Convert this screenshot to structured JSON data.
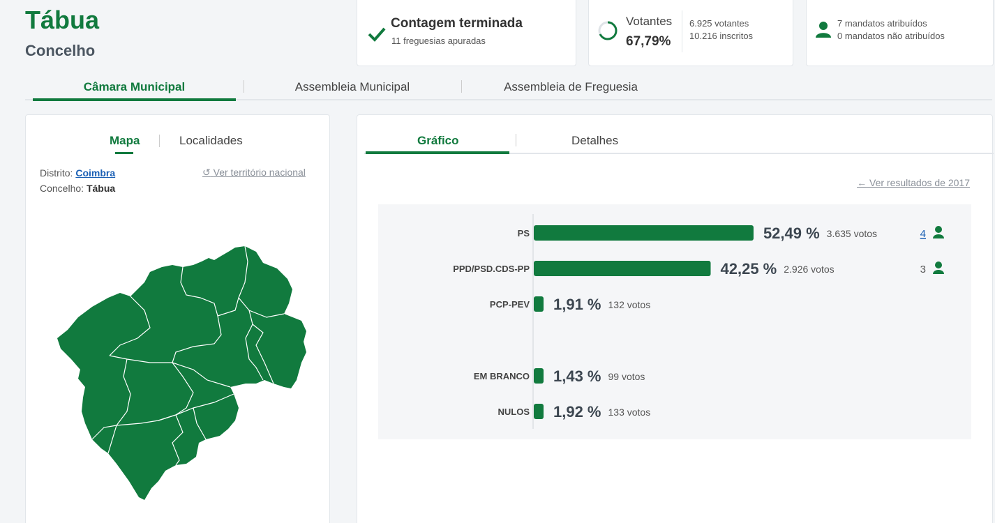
{
  "header": {
    "title": "Tábua",
    "subtitle": "Concelho"
  },
  "status_card": {
    "title": "Contagem terminada",
    "subtitle": "11 freguesias apuradas"
  },
  "votantes_card": {
    "label": "Votantes",
    "percent": "67,79%",
    "percent_value": 67.79,
    "votantes": "6.925 votantes",
    "inscritos": "10.216 inscritos"
  },
  "mandatos_card": {
    "line1": "7 mandatos atribuídos",
    "line2": "0 mandatos não atribuídos"
  },
  "main_tabs": [
    "Câmara Municipal",
    "Assembleia Municipal",
    "Assembleia de Freguesia"
  ],
  "left_panel": {
    "tabs": [
      "Mapa",
      "Localidades"
    ],
    "distrito_label": "Distrito:",
    "distrito_value": "Coimbra",
    "concelho_label": "Concelho:",
    "concelho_value": "Tábua",
    "nacional_link": "Ver território nacional"
  },
  "right_panel": {
    "tabs": [
      "Gráfico",
      "Detalhes"
    ],
    "prev_link": "Ver resultados de 2017"
  },
  "colors": {
    "brand": "#117a3e",
    "link": "#1a5fb4",
    "muted": "#8a9099"
  },
  "chart_data": {
    "type": "bar",
    "orientation": "horizontal",
    "categories": [
      "PS",
      "PPD/PSD.CDS-PP",
      "PCP-PEV",
      "EM BRANCO",
      "NULOS"
    ],
    "values": [
      52.49,
      42.25,
      1.91,
      1.43,
      1.92
    ],
    "value_labels": [
      "52,49 %",
      "42,25 %",
      "1,91 %",
      "1,43 %",
      "1,92 %"
    ],
    "votes_labels": [
      "3.635 votos",
      "2.926 votos",
      "132 votos",
      "99 votos",
      "133 votos"
    ],
    "mandates": [
      "4",
      "3",
      "",
      "",
      ""
    ],
    "title": "",
    "xlabel": "",
    "ylabel": "",
    "xlim": [
      0,
      100
    ]
  }
}
